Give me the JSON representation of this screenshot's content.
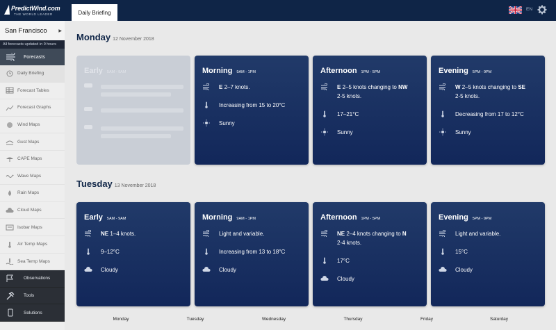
{
  "header": {
    "logo_main": "PredictWind.com",
    "logo_sub": "THE WORLD LEADER",
    "active_tab": "Daily Briefing",
    "lang": "EN"
  },
  "sidebar": {
    "location": "San Francisco",
    "updated": "All forecasts updated in 9 hours",
    "forecasts_label": "Forecasts",
    "items": [
      {
        "label": "Daily Briefing",
        "icon": "clock-icon"
      },
      {
        "label": "Forecast Tables",
        "icon": "table-icon"
      },
      {
        "label": "Forecast Graphs",
        "icon": "graph-icon"
      },
      {
        "label": "Wind Maps",
        "icon": "wind-map-icon"
      },
      {
        "label": "Gust Maps",
        "icon": "gust-map-icon"
      },
      {
        "label": "CAPE Maps",
        "icon": "umbrella-icon"
      },
      {
        "label": "Wave Maps",
        "icon": "wave-icon"
      },
      {
        "label": "Rain Maps",
        "icon": "rain-icon"
      },
      {
        "label": "Cloud Maps",
        "icon": "cloud-icon"
      },
      {
        "label": "Isobar Maps",
        "icon": "isobar-icon"
      },
      {
        "label": "Air Temp Maps",
        "icon": "thermometer-icon"
      },
      {
        "label": "Sea Temp Maps",
        "icon": "sea-temp-icon"
      }
    ],
    "bottom": [
      {
        "label": "Observations",
        "icon": "flag-icon"
      },
      {
        "label": "Tools",
        "icon": "hammer-icon"
      },
      {
        "label": "Solutions",
        "icon": "phone-icon"
      }
    ]
  },
  "days": [
    {
      "day": "Monday",
      "date": "12 November 2018",
      "periods": [
        {
          "name": "Early",
          "time": "5AM - 9AM",
          "ghost": true
        },
        {
          "name": "Morning",
          "time": "9AM - 1PM",
          "wind_bold": "E",
          "wind": "2–7 knots.",
          "temp": "Increasing from 15 to 20°C",
          "sky": "Sunny",
          "sky_icon": "sun-icon"
        },
        {
          "name": "Afternoon",
          "time": "1PM - 5PM",
          "wind_bold": "E",
          "wind": "2–5 knots changing to",
          "wind_bold2": "NW",
          "wind2": "2-5 knots.",
          "temp": "17–21°C",
          "sky": "Sunny",
          "sky_icon": "sun-icon"
        },
        {
          "name": "Evening",
          "time": "5PM - 9PM",
          "wind_bold": "W",
          "wind": "2–5 knots changing to",
          "wind_bold2": "SE",
          "wind2": "2-5 knots.",
          "temp": "Decreasing from 17 to 12°C",
          "sky": "Sunny",
          "sky_icon": "sun-icon"
        }
      ]
    },
    {
      "day": "Tuesday",
      "date": "13 November 2018",
      "periods": [
        {
          "name": "Early",
          "time": "5AM - 9AM",
          "wind_bold": "NE",
          "wind": "1–4 knots.",
          "temp": "9–12°C",
          "sky": "Cloudy",
          "sky_icon": "cloud-icon"
        },
        {
          "name": "Morning",
          "time": "9AM - 1PM",
          "wind_bold": "",
          "wind": "Light and variable.",
          "temp": "Increasing from 13 to 18°C",
          "sky": "Cloudy",
          "sky_icon": "cloud-icon"
        },
        {
          "name": "Afternoon",
          "time": "1PM - 5PM",
          "wind_bold": "NE",
          "wind": "2–4 knots changing to",
          "wind_bold2": "N",
          "wind2": "2-4 knots.",
          "temp": "17°C",
          "sky": "Cloudy",
          "sky_icon": "cloud-icon"
        },
        {
          "name": "Evening",
          "time": "5PM - 9PM",
          "wind_bold": "",
          "wind": "Light and variable.",
          "temp": "15°C",
          "sky": "Cloudy",
          "sky_icon": "cloud-icon"
        }
      ]
    }
  ],
  "weekdays": [
    "Monday",
    "Tuesday",
    "Wednesday",
    "Thursday",
    "Friday",
    "Saturday"
  ],
  "colors": {
    "navy": "#0f2547",
    "card": "#1a3263",
    "sidebar_dark": "#2b2f36"
  }
}
